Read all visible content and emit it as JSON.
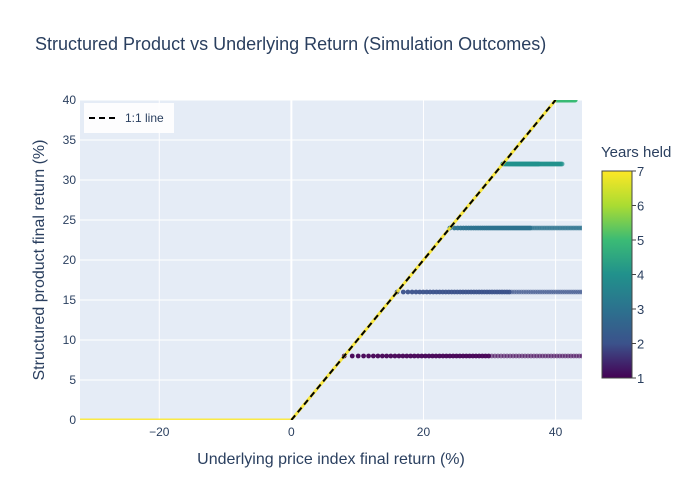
{
  "chart_data": {
    "type": "scatter",
    "title": "Structured Product vs Underlying Return (Simulation Outcomes)",
    "xlabel": "Underlying price index final return (%)",
    "ylabel": "Structured product final return (%)",
    "xlim": [
      -32,
      44
    ],
    "ylim": [
      0,
      40
    ],
    "x_ticks": [
      -20,
      0,
      20,
      40
    ],
    "y_ticks": [
      0,
      5,
      10,
      15,
      20,
      25,
      30,
      35,
      40
    ],
    "grid": true,
    "legend": {
      "position": "top-left",
      "entries": [
        "1:1 line"
      ]
    },
    "colorbar": {
      "title": "Years held",
      "range": [
        1,
        7
      ],
      "ticks": [
        1,
        2,
        3,
        4,
        5,
        6,
        7
      ],
      "colorscale": "Viridis"
    },
    "series": [
      {
        "years_held": 1,
        "y": 8,
        "x_range": [
          8,
          44
        ],
        "color": "#440154"
      },
      {
        "years_held": 2,
        "y": 16,
        "x_range": [
          16,
          44
        ],
        "color": "#3b528b"
      },
      {
        "years_held": 3,
        "y": 24,
        "x_range": [
          24,
          44
        ],
        "color": "#2c728e"
      },
      {
        "years_held": 4,
        "y": 32,
        "x_range": [
          32,
          41
        ],
        "color": "#21918c"
      },
      {
        "years_held": 5,
        "y": 40,
        "x_range": [
          40,
          43
        ],
        "color": "#3bbb75"
      },
      {
        "years_held": 7,
        "segments": [
          {
            "x": [
              -32,
              0
            ],
            "y": [
              0,
              0
            ]
          },
          {
            "x": [
              0,
              40
            ],
            "y": [
              0,
              40
            ]
          }
        ],
        "color": "#fde725"
      }
    ],
    "reference_line": {
      "name": "1:1 line",
      "x": [
        0,
        40
      ],
      "y": [
        0,
        40
      ],
      "style": "dashed",
      "color": "#000000"
    }
  }
}
